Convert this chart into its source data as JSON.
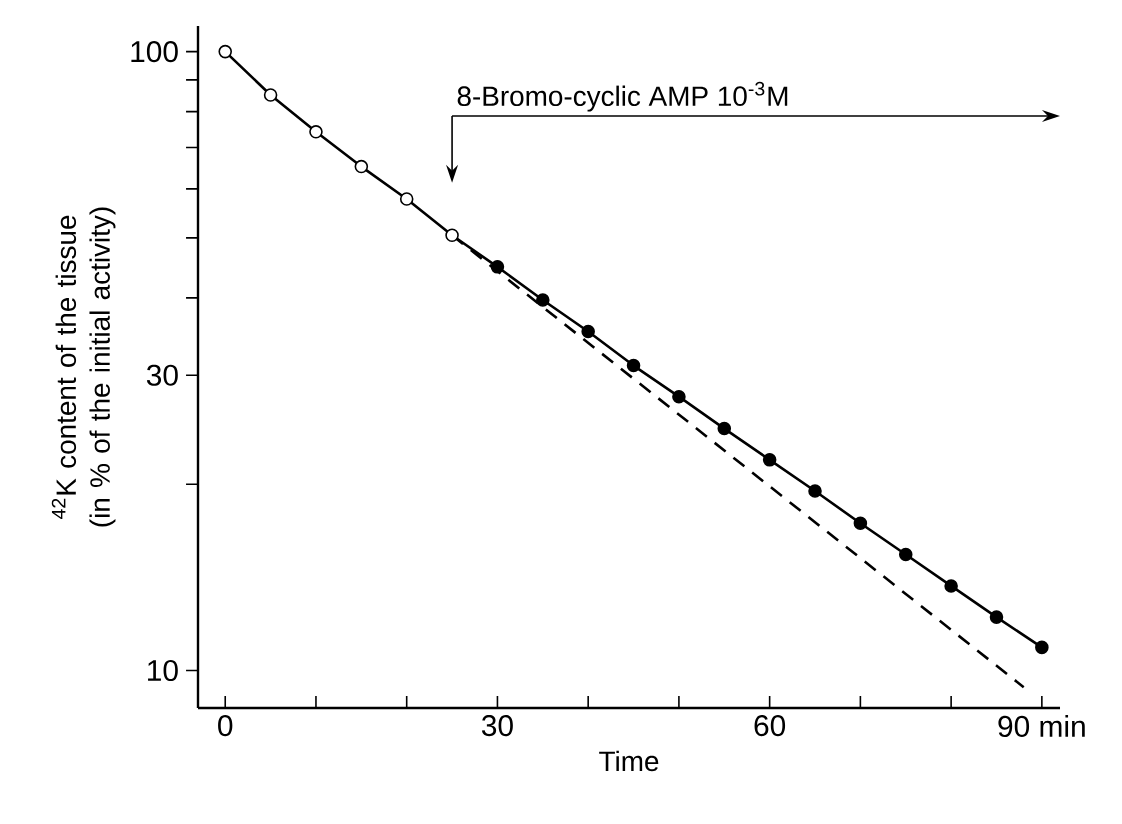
{
  "chart_data": {
    "type": "line",
    "xlabel": "Time",
    "ylabel": "$^{42}$K content of the tissue (in % of the initial activity)",
    "log": "y",
    "xlim": [
      -3,
      92
    ],
    "ylim": [
      8.7,
      110
    ],
    "xticks": [
      0,
      {
        "value": 10,
        "label": null
      },
      {
        "value": 20,
        "label": null
      },
      30,
      {
        "value": 40,
        "label": null
      },
      {
        "value": 50,
        "label": null
      },
      60,
      {
        "value": 70,
        "label": null
      },
      {
        "value": 80,
        "label": null
      },
      {
        "value": 90,
        "label": "90 min"
      }
    ],
    "yticks": [
      10,
      {
        "value": 20,
        "label": null
      },
      30,
      {
        "value": 40,
        "label": null
      },
      {
        "value": 50,
        "label": null
      },
      {
        "value": 60,
        "label": null
      },
      {
        "value": 70,
        "label": null
      },
      {
        "value": 80,
        "label": null
      },
      {
        "value": 90,
        "label": null
      },
      100
    ],
    "annotations": [
      "8-Bromo-cyclic AMP 10$^{-3}$M"
    ],
    "series": [
      {
        "marker": "none",
        "line_style": "solid",
        "color": "#000000",
        "x": [
          0,
          5,
          10,
          15,
          20,
          25,
          30,
          35,
          40,
          45,
          50,
          55,
          60,
          65,
          70,
          75,
          80,
          85,
          90
        ],
        "values": [
          100,
          85.1,
          74.2,
          65.2,
          57.8,
          50.5,
          44.9,
          39.7,
          35.3,
          31.1,
          27.7,
          24.6,
          21.9,
          19.5,
          17.3,
          15.4,
          13.7,
          12.2,
          10.9
        ]
      },
      {
        "type": "line",
        "marker": "none",
        "line_style": "dashed",
        "color": "#000000",
        "x": [
          25,
          88
        ],
        "values": [
          50.5,
          9.4
        ]
      },
      {
        "type": "scatter",
        "marker": "circle",
        "color": "#ffffff",
        "x": [
          0,
          5,
          10,
          15,
          20,
          25
        ],
        "values": [
          100,
          85.1,
          74.2,
          65.2,
          57.8,
          50.5
        ]
      },
      {
        "type": "scatter",
        "marker": "circle",
        "color": "#000000",
        "x": [
          30,
          35,
          40,
          45,
          50,
          55,
          60,
          65,
          70,
          75,
          80,
          85,
          90
        ],
        "values": [
          44.9,
          39.7,
          35.3,
          31.1,
          27.7,
          24.6,
          21.9,
          19.5,
          17.3,
          15.4,
          13.7,
          12.2,
          10.9
        ]
      }
    ]
  }
}
